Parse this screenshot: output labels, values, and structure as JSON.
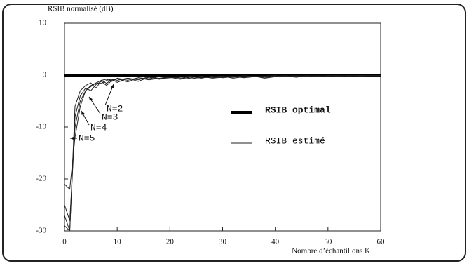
{
  "chart_data": {
    "type": "line",
    "y_label": "RSIB normalisé (dB)",
    "x_label": "Nombre d’échantillons  K",
    "x": [
      0,
      1,
      2,
      3,
      4,
      5,
      6,
      7,
      8,
      9,
      10,
      12,
      14,
      16,
      18,
      20,
      22,
      24,
      26,
      28,
      30,
      32,
      34,
      36,
      38,
      40,
      42,
      44,
      46,
      48,
      50,
      52,
      54,
      56,
      58,
      60
    ],
    "xlim": [
      0,
      60
    ],
    "xticks": [
      0,
      10,
      20,
      30,
      40,
      50,
      60
    ],
    "ylim": [
      -30,
      10
    ],
    "yticks": [
      -30,
      -20,
      -10,
      0,
      10
    ],
    "grid": false,
    "series": [
      {
        "name": "RSIB optimal",
        "color": "#000000",
        "width": 4,
        "x": [
          0,
          60
        ],
        "values": [
          0,
          0
        ]
      },
      {
        "name": "RSIB estimé",
        "color": "#222222",
        "width": 1,
        "curves": [
          {
            "label": "N=2",
            "values": [
              -21,
              -22,
              -12,
              -6,
              -3,
              -2,
              -1.5,
              -1,
              -0.8,
              -1.2,
              -0.6,
              -1,
              -0.5,
              -0.7,
              -0.3,
              -0.5,
              -0.4,
              -0.2,
              -0.5,
              -0.3,
              -0.2,
              -0.4,
              -0.1,
              -0.3,
              -0.2,
              -0.1,
              -0.3,
              -0.2,
              -0.1,
              -0.2,
              -0.1,
              -0.2,
              -0.1,
              -0.1,
              -0.1,
              -0.1
            ]
          },
          {
            "label": "N=3",
            "values": [
              -25,
              -28,
              -10,
              -5,
              -3,
              -2.2,
              -1.5,
              -1.6,
              -1,
              -0.8,
              -1,
              -0.6,
              -1.2,
              -0.4,
              -0.8,
              -0.3,
              -0.6,
              -0.5,
              -0.2,
              -0.6,
              -0.4,
              -0.2,
              -0.5,
              -0.3,
              -0.4,
              -0.2,
              -0.1,
              -0.3,
              -0.2,
              -0.1,
              -0.2,
              -0.1,
              -0.1,
              -0.2,
              -0.1,
              -0.1
            ]
          },
          {
            "label": "N=4",
            "values": [
              -29,
              -30,
              -8,
              -4,
              -2.5,
              -3,
              -1.8,
              -1.2,
              -2,
              -1,
              -0.7,
              -1.3,
              -0.5,
              -0.9,
              -0.6,
              -0.4,
              -0.8,
              -0.3,
              -0.6,
              -0.2,
              -0.5,
              -0.3,
              -0.4,
              -0.2,
              -0.6,
              -0.3,
              -0.2,
              -0.1,
              -0.3,
              -0.2,
              -0.1,
              -0.2,
              -0.1,
              -0.1,
              -0.1,
              -0.1
            ]
          },
          {
            "label": "N=5",
            "values": [
              -27,
              -30,
              -6,
              -3,
              -2,
              -1.5,
              -2.5,
              -1,
              -1.6,
              -0.8,
              -1.4,
              -0.6,
              -0.9,
              -0.3,
              -0.7,
              -0.5,
              -0.3,
              -0.7,
              -0.4,
              -0.5,
              -0.2,
              -0.6,
              -0.3,
              -0.2,
              -0.4,
              -0.3,
              -0.2,
              -0.4,
              -0.1,
              -0.2,
              -0.1,
              -0.1,
              -0.2,
              -0.1,
              -0.1,
              -0.1
            ]
          }
        ]
      }
    ]
  }
}
